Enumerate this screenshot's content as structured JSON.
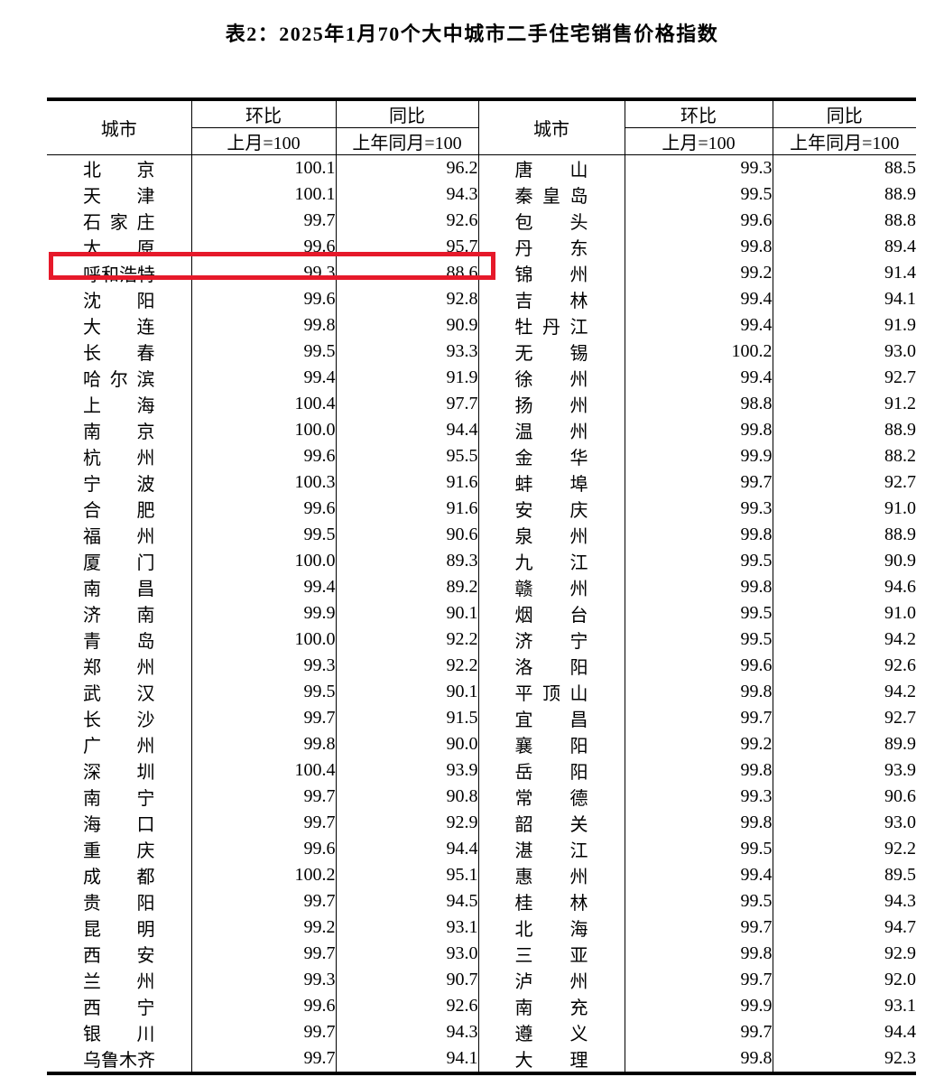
{
  "title": "表2：2025年1月70个大中城市二手住宅销售价格指数",
  "table": {
    "headers": {
      "city": "城市",
      "mom": "环比",
      "yoy": "同比",
      "mom_base": "上月=100",
      "yoy_base": "上年同月=100"
    },
    "highlight": {
      "city": "呼和浩特",
      "row_index": 4,
      "side": "left",
      "color": "#e6192a"
    },
    "rows": [
      {
        "l": [
          "北京",
          "100.1",
          "96.2"
        ],
        "r": [
          "唐山",
          "99.3",
          "88.5"
        ]
      },
      {
        "l": [
          "天津",
          "100.1",
          "94.3"
        ],
        "r": [
          "秦皇岛",
          "99.5",
          "88.9"
        ]
      },
      {
        "l": [
          "石家庄",
          "99.7",
          "92.6"
        ],
        "r": [
          "包头",
          "99.6",
          "88.8"
        ]
      },
      {
        "l": [
          "太原",
          "99.6",
          "95.7"
        ],
        "r": [
          "丹东",
          "99.8",
          "89.4"
        ]
      },
      {
        "l": [
          "呼和浩特",
          "99.3",
          "88.6"
        ],
        "r": [
          "锦州",
          "99.2",
          "91.4"
        ]
      },
      {
        "l": [
          "沈阳",
          "99.6",
          "92.8"
        ],
        "r": [
          "吉林",
          "99.4",
          "94.1"
        ]
      },
      {
        "l": [
          "大连",
          "99.8",
          "90.9"
        ],
        "r": [
          "牡丹江",
          "99.4",
          "91.9"
        ]
      },
      {
        "l": [
          "长春",
          "99.5",
          "93.3"
        ],
        "r": [
          "无锡",
          "100.2",
          "93.0"
        ]
      },
      {
        "l": [
          "哈尔滨",
          "99.4",
          "91.9"
        ],
        "r": [
          "徐州",
          "99.4",
          "92.7"
        ]
      },
      {
        "l": [
          "上海",
          "100.4",
          "97.7"
        ],
        "r": [
          "扬州",
          "98.8",
          "91.2"
        ]
      },
      {
        "l": [
          "南京",
          "100.0",
          "94.4"
        ],
        "r": [
          "温州",
          "99.8",
          "88.9"
        ]
      },
      {
        "l": [
          "杭州",
          "99.6",
          "95.5"
        ],
        "r": [
          "金华",
          "99.9",
          "88.2"
        ]
      },
      {
        "l": [
          "宁波",
          "100.3",
          "91.6"
        ],
        "r": [
          "蚌埠",
          "99.7",
          "92.7"
        ]
      },
      {
        "l": [
          "合肥",
          "99.6",
          "91.6"
        ],
        "r": [
          "安庆",
          "99.3",
          "91.0"
        ]
      },
      {
        "l": [
          "福州",
          "99.5",
          "90.6"
        ],
        "r": [
          "泉州",
          "99.8",
          "88.9"
        ]
      },
      {
        "l": [
          "厦门",
          "100.0",
          "89.3"
        ],
        "r": [
          "九江",
          "99.5",
          "90.9"
        ]
      },
      {
        "l": [
          "南昌",
          "99.4",
          "89.2"
        ],
        "r": [
          "赣州",
          "99.8",
          "94.6"
        ]
      },
      {
        "l": [
          "济南",
          "99.9",
          "90.1"
        ],
        "r": [
          "烟台",
          "99.5",
          "91.0"
        ]
      },
      {
        "l": [
          "青岛",
          "100.0",
          "92.2"
        ],
        "r": [
          "济宁",
          "99.5",
          "94.2"
        ]
      },
      {
        "l": [
          "郑州",
          "99.3",
          "92.2"
        ],
        "r": [
          "洛阳",
          "99.6",
          "92.6"
        ]
      },
      {
        "l": [
          "武汉",
          "99.5",
          "90.1"
        ],
        "r": [
          "平顶山",
          "99.8",
          "94.2"
        ]
      },
      {
        "l": [
          "长沙",
          "99.7",
          "91.5"
        ],
        "r": [
          "宜昌",
          "99.7",
          "92.7"
        ]
      },
      {
        "l": [
          "广州",
          "99.8",
          "90.0"
        ],
        "r": [
          "襄阳",
          "99.2",
          "89.9"
        ]
      },
      {
        "l": [
          "深圳",
          "100.4",
          "93.9"
        ],
        "r": [
          "岳阳",
          "99.8",
          "93.9"
        ]
      },
      {
        "l": [
          "南宁",
          "99.7",
          "90.8"
        ],
        "r": [
          "常德",
          "99.3",
          "90.6"
        ]
      },
      {
        "l": [
          "海口",
          "99.7",
          "92.9"
        ],
        "r": [
          "韶关",
          "99.8",
          "93.0"
        ]
      },
      {
        "l": [
          "重庆",
          "99.6",
          "94.4"
        ],
        "r": [
          "湛江",
          "99.5",
          "92.2"
        ]
      },
      {
        "l": [
          "成都",
          "100.2",
          "95.1"
        ],
        "r": [
          "惠州",
          "99.4",
          "89.5"
        ]
      },
      {
        "l": [
          "贵阳",
          "99.7",
          "94.5"
        ],
        "r": [
          "桂林",
          "99.5",
          "94.3"
        ]
      },
      {
        "l": [
          "昆明",
          "99.2",
          "93.1"
        ],
        "r": [
          "北海",
          "99.7",
          "94.7"
        ]
      },
      {
        "l": [
          "西安",
          "99.7",
          "93.0"
        ],
        "r": [
          "三亚",
          "99.8",
          "92.9"
        ]
      },
      {
        "l": [
          "兰州",
          "99.3",
          "90.7"
        ],
        "r": [
          "泸州",
          "99.7",
          "92.0"
        ]
      },
      {
        "l": [
          "西宁",
          "99.6",
          "92.6"
        ],
        "r": [
          "南充",
          "99.9",
          "93.1"
        ]
      },
      {
        "l": [
          "银川",
          "99.7",
          "94.3"
        ],
        "r": [
          "遵义",
          "99.7",
          "94.4"
        ]
      },
      {
        "l": [
          "乌鲁木齐",
          "99.7",
          "94.1"
        ],
        "r": [
          "大理",
          "99.8",
          "92.3"
        ]
      }
    ]
  }
}
